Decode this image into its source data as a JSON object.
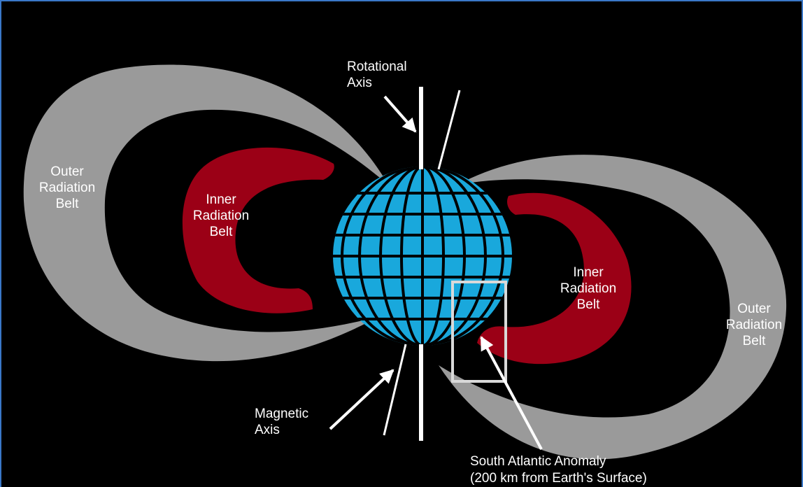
{
  "diagram": {
    "labels": {
      "rotational_axis": "Rotational\nAxis",
      "outer_belt_left": "Outer\nRadiation\nBelt",
      "inner_belt_left": "Inner\nRadiation\nBelt",
      "inner_belt_right": "Inner\nRadiation\nBelt",
      "outer_belt_right": "Outer\nRadiation\nBelt",
      "magnetic_axis": "Magnetic\nAxis",
      "anomaly_title": "South Atlantic Anomaly",
      "anomaly_sub": "(200 km from Earth's Surface)"
    },
    "colors": {
      "background": "#000000",
      "outer_belt": "#9a9a9a",
      "inner_belt": "#9b0016",
      "earth": "#19a8dc",
      "grid": "#000000",
      "axis": "#ffffff",
      "highlight_box": "#d9d9d9",
      "frame": "#3a78c8"
    }
  }
}
